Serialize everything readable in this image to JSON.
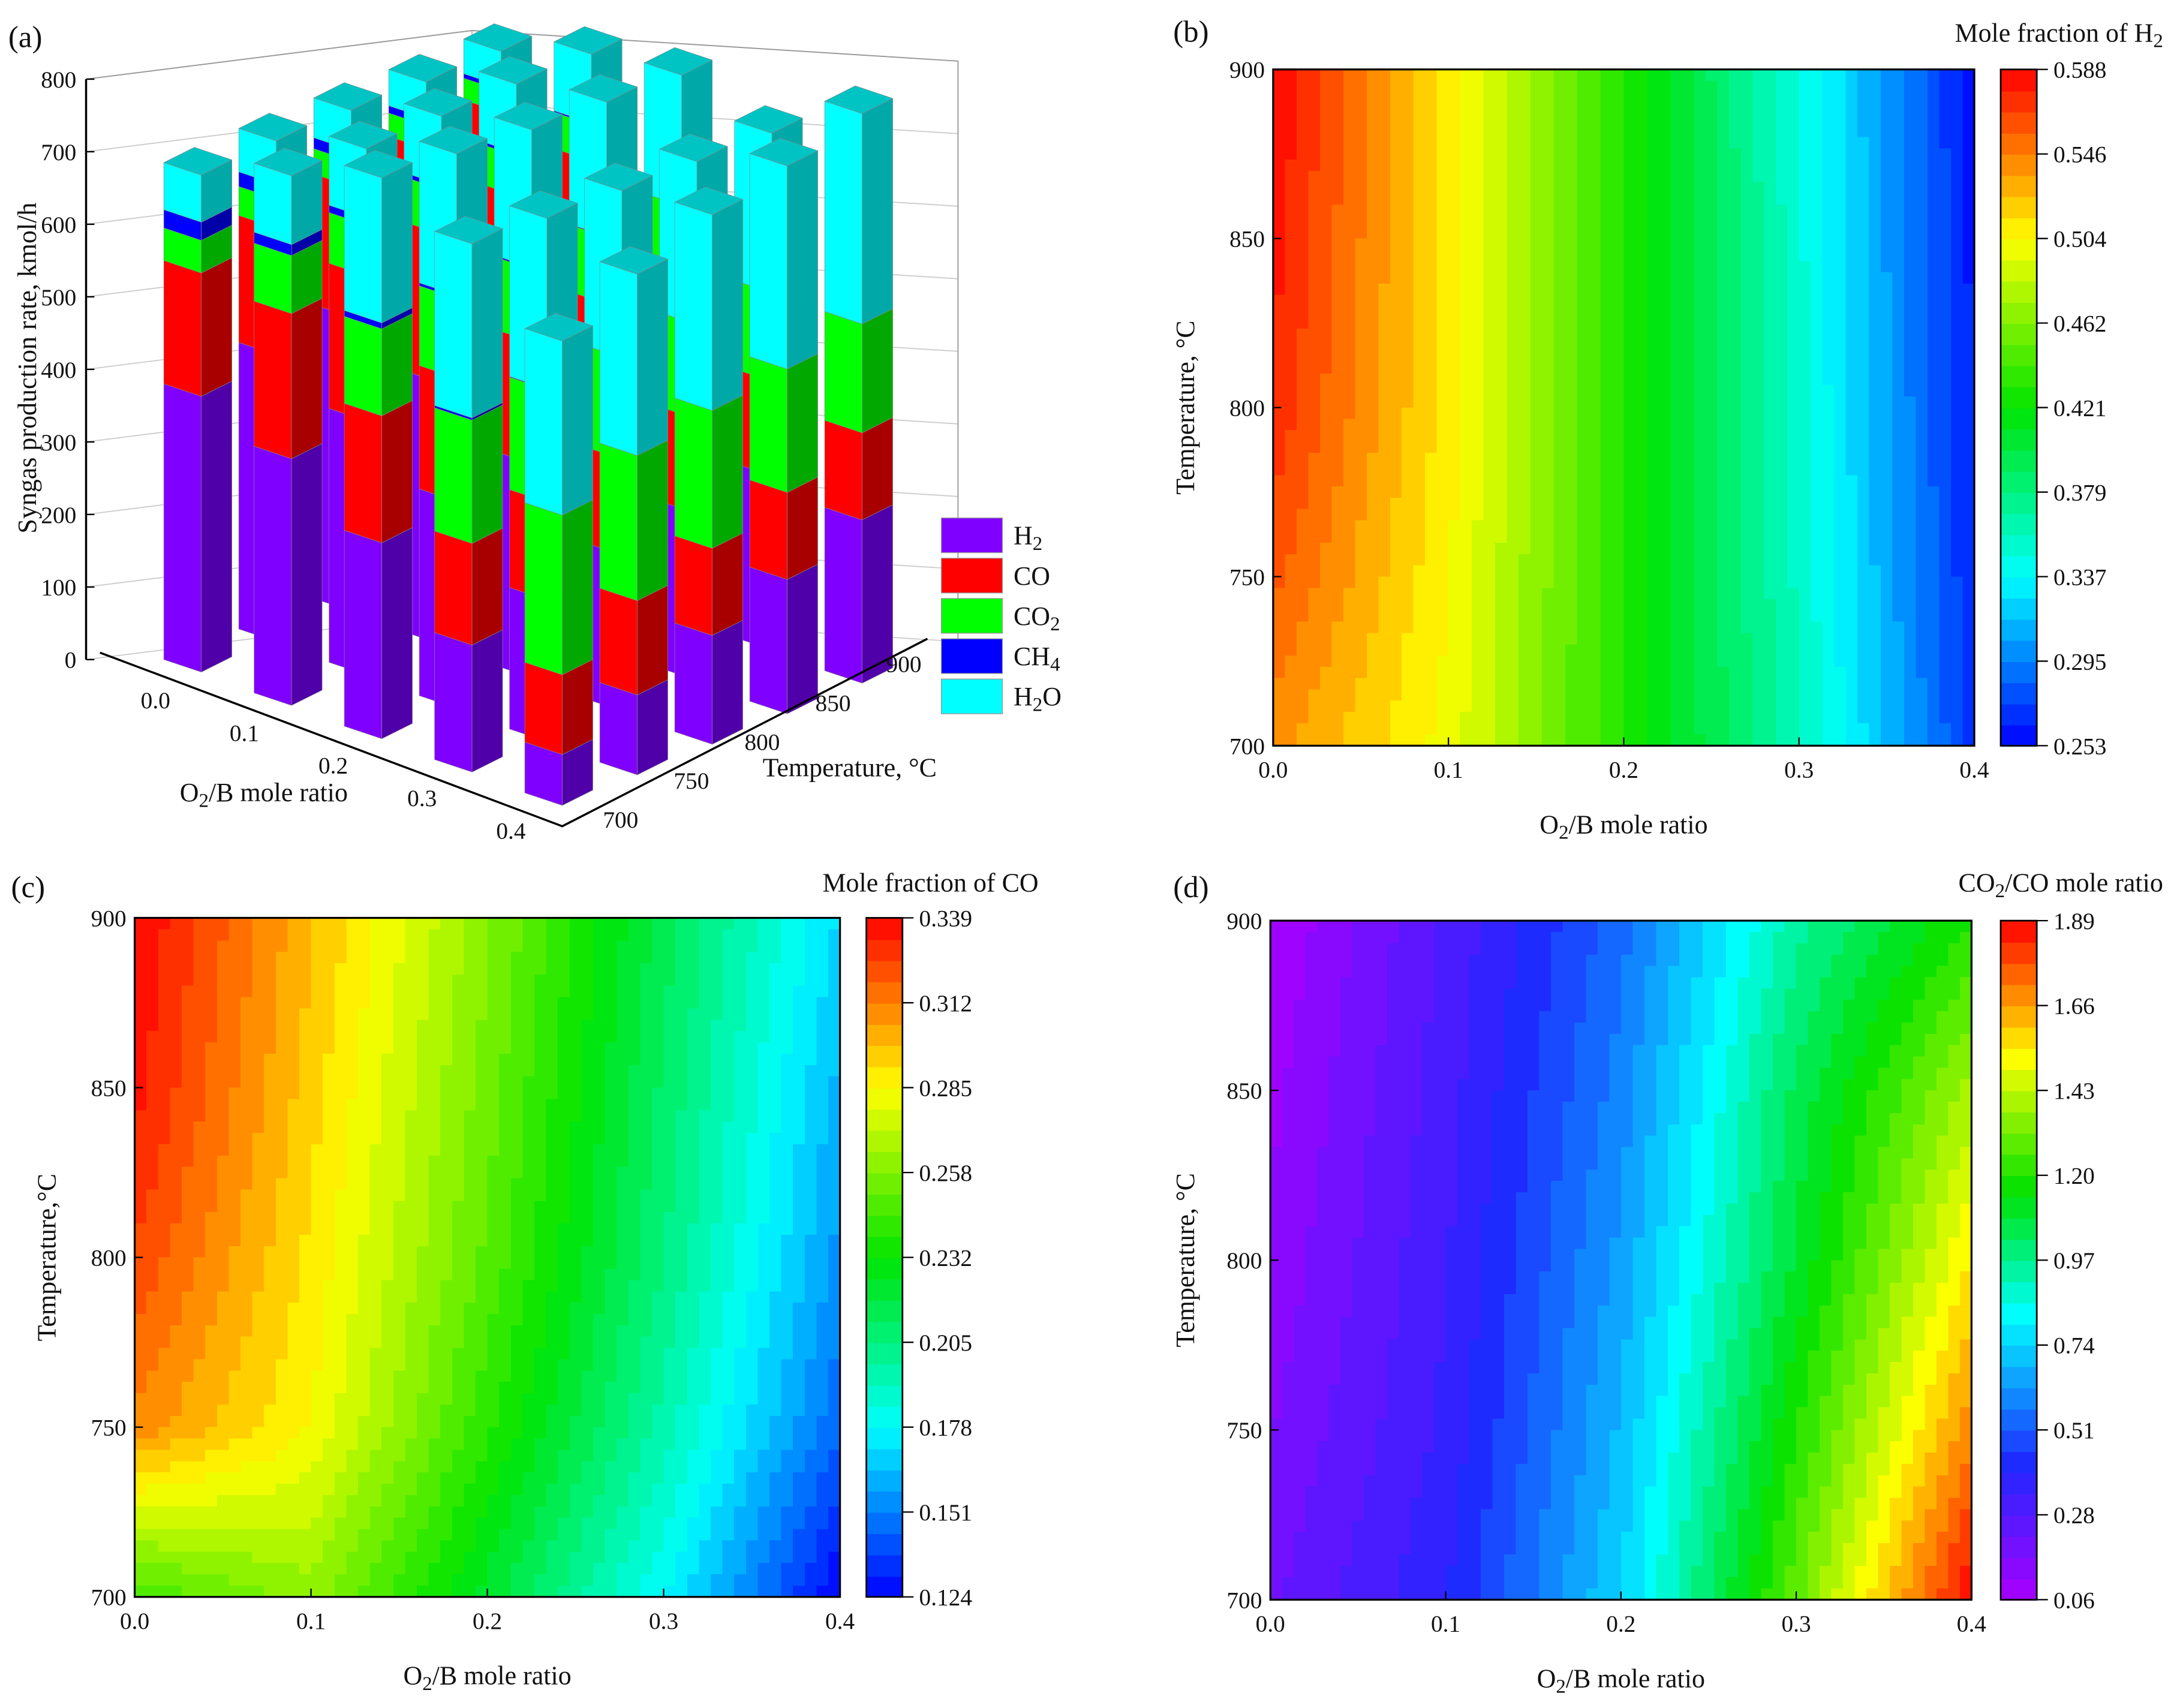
{
  "chart_data": [
    {
      "panel": "(a)",
      "type": "bar",
      "subtype": "3d-stacked-bar",
      "title": "",
      "zlabel": "Syngas production rate, kmol/h",
      "xlabel": "O2/B mole ratio",
      "ylabel": "Temperature, °C",
      "zlim": [
        0,
        800
      ],
      "zticks": [
        "0",
        "100",
        "200",
        "300",
        "400",
        "500",
        "600",
        "700",
        "800"
      ],
      "x": [
        "0.0",
        "0.1",
        "0.2",
        "0.3",
        "0.4"
      ],
      "y": [
        "700",
        "750",
        "800",
        "850",
        "900"
      ],
      "legend": [
        {
          "name": "H2",
          "color": "#8000ff",
          "side": "#5000a8"
        },
        {
          "name": "CO",
          "color": "#ff0000",
          "side": "#a80000"
        },
        {
          "name": "CO2",
          "color": "#00ff00",
          "side": "#00a800"
        },
        {
          "name": "CH4",
          "color": "#0000ff",
          "side": "#0000a8"
        },
        {
          "name": "H2O",
          "color": "#00ffff",
          "side": "#00a8a8"
        }
      ],
      "legend_position": "right",
      "note": "values[x index][temperature index] = [H2, CO, CO2, CH4, H2O] kmol/h (estimated)",
      "values": [
        [
          [
            380,
            170,
            45,
            25,
            65
          ],
          [
            395,
            175,
            40,
            20,
            60
          ],
          [
            405,
            180,
            35,
            15,
            55
          ],
          [
            410,
            185,
            32,
            10,
            50
          ],
          [
            415,
            188,
            30,
            6,
            48
          ]
        ],
        [
          [
            340,
            200,
            80,
            15,
            95
          ],
          [
            350,
            200,
            70,
            10,
            95
          ],
          [
            360,
            205,
            62,
            6,
            95
          ],
          [
            368,
            208,
            55,
            4,
            95
          ],
          [
            372,
            210,
            50,
            2,
            95
          ]
        ],
        [
          [
            270,
            175,
            120,
            8,
            200
          ],
          [
            285,
            170,
            110,
            4,
            195
          ],
          [
            295,
            168,
            100,
            2,
            190
          ],
          [
            305,
            168,
            92,
            1,
            185
          ],
          [
            312,
            168,
            86,
            0,
            180
          ]
        ],
        [
          [
            175,
            140,
            170,
            3,
            240
          ],
          [
            195,
            135,
            155,
            1,
            235
          ],
          [
            215,
            132,
            140,
            0,
            230
          ],
          [
            230,
            130,
            130,
            0,
            225
          ],
          [
            240,
            130,
            122,
            0,
            220
          ]
        ],
        [
          [
            70,
            110,
            220,
            0,
            240
          ],
          [
            110,
            130,
            200,
            0,
            250
          ],
          [
            150,
            120,
            190,
            0,
            270
          ],
          [
            185,
            120,
            170,
            0,
            280
          ],
          [
            225,
            120,
            150,
            0,
            290
          ]
        ]
      ]
    },
    {
      "panel": "(b)",
      "type": "heatmap",
      "subtype": "contour",
      "title": "Mole fraction of H2",
      "xlabel": "O2/B mole ratio",
      "ylabel": "Temperature, °C",
      "x": [
        0.0,
        0.1,
        0.2,
        0.3,
        0.4
      ],
      "y": [
        700,
        750,
        800,
        850,
        900
      ],
      "xticks": [
        "0.0",
        "0.1",
        "0.2",
        "0.3",
        "0.4"
      ],
      "yticks": [
        "700",
        "750",
        "800",
        "850",
        "900"
      ],
      "zlim": [
        0.253,
        0.588
      ],
      "colormap": "jet",
      "colorbar_ticks": [
        "0.253",
        "0.295",
        "0.337",
        "0.379",
        "0.421",
        "0.462",
        "0.504",
        "0.546",
        "0.588"
      ],
      "z": [
        [
          0.54,
          0.5,
          0.43,
          0.36,
          0.27
        ],
        [
          0.56,
          0.505,
          0.43,
          0.355,
          0.265
        ],
        [
          0.575,
          0.51,
          0.43,
          0.352,
          0.262
        ],
        [
          0.582,
          0.51,
          0.43,
          0.35,
          0.26
        ],
        [
          0.588,
          0.512,
          0.43,
          0.348,
          0.258
        ]
      ]
    },
    {
      "panel": "(c)",
      "type": "heatmap",
      "subtype": "contour",
      "title": "Mole fraction of CO",
      "xlabel": "O2/B mole ratio",
      "ylabel": "Temperature,°C",
      "x": [
        0.0,
        0.1,
        0.2,
        0.3,
        0.4
      ],
      "y": [
        700,
        750,
        800,
        850,
        900
      ],
      "xticks": [
        "0.0",
        "0.1",
        "0.2",
        "0.3",
        "0.4"
      ],
      "yticks": [
        "700",
        "750",
        "800",
        "850",
        "900"
      ],
      "zlim": [
        0.124,
        0.339
      ],
      "colormap": "jet",
      "colorbar_ticks": [
        "0.124",
        "0.151",
        "0.178",
        "0.205",
        "0.232",
        "0.258",
        "0.285",
        "0.312",
        "0.339"
      ],
      "z": [
        [
          0.245,
          0.262,
          0.222,
          0.178,
          0.124
        ],
        [
          0.31,
          0.285,
          0.24,
          0.195,
          0.145
        ],
        [
          0.325,
          0.29,
          0.25,
          0.205,
          0.155
        ],
        [
          0.335,
          0.295,
          0.255,
          0.21,
          0.162
        ],
        [
          0.339,
          0.3,
          0.26,
          0.215,
          0.17
        ]
      ]
    },
    {
      "panel": "(d)",
      "type": "heatmap",
      "subtype": "contour",
      "title": "CO2/CO mole ratio",
      "xlabel": "O2/B mole ratio",
      "ylabel": "Temperature, °C",
      "x": [
        0.0,
        0.1,
        0.2,
        0.3,
        0.4
      ],
      "y": [
        700,
        750,
        800,
        850,
        900
      ],
      "xticks": [
        "0.0",
        "0.1",
        "0.2",
        "0.3",
        "0.4"
      ],
      "yticks": [
        "700",
        "750",
        "800",
        "850",
        "900"
      ],
      "zlim": [
        0.06,
        1.89
      ],
      "colormap": "violet-jet",
      "colorbar_ticks": [
        "0.06",
        "0.28",
        "0.51",
        "0.74",
        "0.97",
        "1.20",
        "1.43",
        "1.66",
        "1.89"
      ],
      "z": [
        [
          0.22,
          0.4,
          0.75,
          1.3,
          1.89
        ],
        [
          0.17,
          0.36,
          0.7,
          1.2,
          1.7
        ],
        [
          0.13,
          0.34,
          0.65,
          1.1,
          1.55
        ],
        [
          0.1,
          0.32,
          0.6,
          1.05,
          1.4
        ],
        [
          0.06,
          0.3,
          0.55,
          0.95,
          1.2
        ]
      ]
    }
  ]
}
